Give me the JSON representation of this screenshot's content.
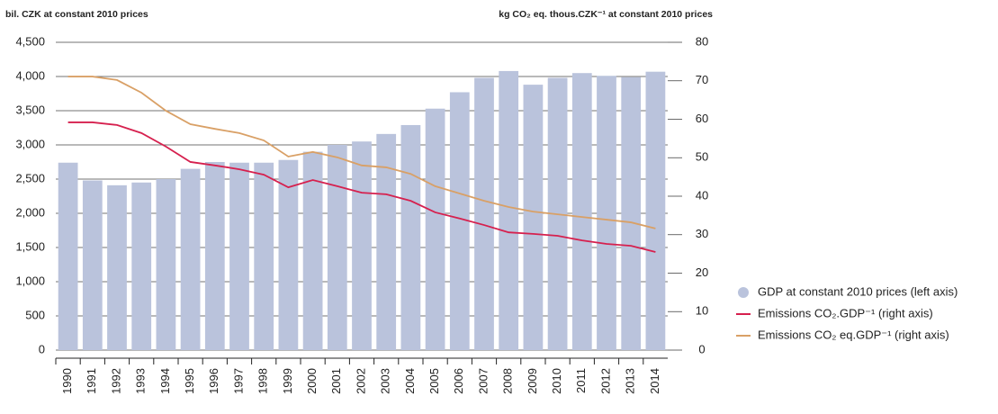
{
  "chart_data": {
    "type": "bar",
    "ylabel": "bil. CZK at constant 2010 prices",
    "y2label": "kg CO₂ eq. thous.CZK⁻¹ at constant 2010 prices",
    "categories": [
      "1990",
      "1991",
      "1992",
      "1993",
      "1994",
      "1995",
      "1996",
      "1997",
      "1998",
      "1999",
      "2000",
      "2001",
      "2002",
      "2003",
      "2004",
      "2005",
      "2006",
      "2007",
      "2008",
      "2009",
      "2010",
      "2011",
      "2012",
      "2013",
      "2014"
    ],
    "series": [
      {
        "name": "GDP at constant 2010 prices (left axis)",
        "color": "#bac3dc",
        "type": "bar",
        "values": [
          2740,
          2480,
          2410,
          2450,
          2500,
          2650,
          2750,
          2740,
          2740,
          2780,
          2900,
          3000,
          3050,
          3160,
          3290,
          3530,
          3770,
          3980,
          4080,
          3880,
          3980,
          4050,
          4010,
          3990,
          4070
        ]
      },
      {
        "name": "Emissions CO₂.GDP⁻¹ (right axis)",
        "color": "#d6204e",
        "type": "line",
        "axis": "y2",
        "values": [
          59.2,
          59.2,
          58.5,
          56.4,
          52.9,
          48.9,
          48.0,
          47.0,
          45.6,
          42.3,
          44.2,
          42.6,
          40.9,
          40.5,
          38.8,
          35.8,
          34.2,
          32.5,
          30.6,
          30.2,
          29.7,
          28.5,
          27.6,
          27.1,
          25.5
        ]
      },
      {
        "name": "Emissions CO₂ eq.GDP⁻¹ (right axis)",
        "color": "#d9a066",
        "type": "line",
        "axis": "y2",
        "values": [
          71.1,
          71.1,
          70.2,
          66.9,
          62.2,
          58.7,
          57.5,
          56.4,
          54.5,
          50.3,
          51.5,
          50.1,
          48.0,
          47.5,
          45.8,
          42.6,
          40.7,
          38.8,
          37.2,
          36.0,
          35.3,
          34.6,
          33.9,
          33.2,
          31.6
        ]
      }
    ],
    "ylim": [
      0,
      4500
    ],
    "yticks": [
      0,
      500,
      {
        "value": 1000,
        "label": "1,000"
      },
      {
        "value": 1500,
        "label": "1,500"
      },
      {
        "value": 2000,
        "label": "2,000"
      },
      {
        "value": 2500,
        "label": "2,500"
      },
      {
        "value": 3000,
        "label": "3,000"
      },
      {
        "value": 3500,
        "label": "3,500"
      },
      {
        "value": 4000,
        "label": "4,000"
      },
      {
        "value": 4500,
        "label": "4,500"
      }
    ],
    "y2lim": [
      0,
      80
    ],
    "y2ticks": [
      0,
      10,
      20,
      30,
      40,
      50,
      60,
      70,
      80
    ],
    "grid": true,
    "legend": "right"
  }
}
